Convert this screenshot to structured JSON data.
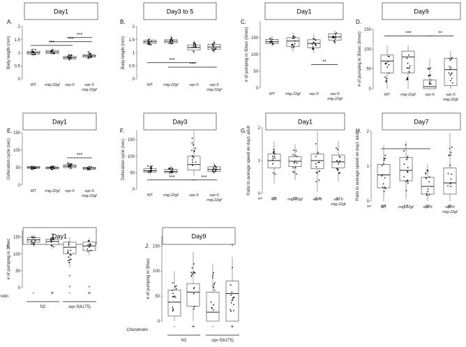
{
  "figure": {
    "description": "Multi-panel box plot figure"
  },
  "chart_data": [
    {
      "panel": "A.",
      "type": "box",
      "title": "Day1",
      "ylabel": "Body length (mm)",
      "yticks": [
        0,
        0.5,
        1,
        1.5,
        2
      ],
      "ylim": [
        0,
        2
      ],
      "categories": [
        "WT",
        "mig-22gf",
        "sqv-5",
        "sqv-5\nmig-22gf"
      ],
      "category_style": [
        "normal",
        "italic",
        "italic",
        "italic"
      ],
      "boxes": [
        {
          "q1": 0.95,
          "median": 1.0,
          "q3": 1.06,
          "min": 0.86,
          "max": 1.18
        },
        {
          "q1": 0.97,
          "median": 1.03,
          "q3": 1.09,
          "min": 0.9,
          "max": 1.2
        },
        {
          "q1": 0.76,
          "median": 0.81,
          "q3": 0.86,
          "min": 0.68,
          "max": 0.97
        },
        {
          "q1": 0.83,
          "median": 0.88,
          "q3": 0.92,
          "min": 0.74,
          "max": 1.1
        }
      ],
      "significance": [
        {
          "from": 0,
          "to": 2,
          "level": 1.28,
          "label": "***"
        },
        {
          "from": 1,
          "to": 3,
          "level": 1.42,
          "label": "***"
        },
        {
          "from": 2,
          "to": 3,
          "level": 1.58,
          "label": "***"
        }
      ]
    },
    {
      "panel": "B.",
      "type": "box",
      "title": "Day3 to 5",
      "ylabel": "Body length (mm)",
      "yticks": [
        0,
        0.5,
        1,
        1.5,
        2
      ],
      "ylim": [
        0,
        2
      ],
      "categories": [
        "WT",
        "mig-22gf",
        "sqv-5",
        "sqv-5\nmig-22gf"
      ],
      "category_style": [
        "normal",
        "italic",
        "italic",
        "italic"
      ],
      "boxes": [
        {
          "q1": 1.36,
          "median": 1.42,
          "q3": 1.48,
          "min": 1.25,
          "max": 1.6
        },
        {
          "q1": 1.38,
          "median": 1.44,
          "q3": 1.5,
          "min": 1.28,
          "max": 1.66
        },
        {
          "q1": 1.1,
          "median": 1.2,
          "q3": 1.3,
          "min": 0.95,
          "max": 1.48
        },
        {
          "q1": 1.13,
          "median": 1.22,
          "q3": 1.32,
          "min": 0.98,
          "max": 1.48
        }
      ],
      "significance": [
        {
          "from": 0,
          "to": 2,
          "level": 0.62,
          "label": "***"
        },
        {
          "from": 1,
          "to": 3,
          "level": 0.45,
          "label": "***"
        }
      ]
    },
    {
      "panel": "C.",
      "type": "box",
      "title": "Day1",
      "ylabel": "# of pumping in 30sec (times)",
      "yticks": [
        0,
        50,
        100,
        150
      ],
      "ylim": [
        0,
        200
      ],
      "categories": [
        "WT",
        "mig-22gf",
        "sqv-5",
        "sqv-5\nmig-22gf"
      ],
      "category_style": [
        "normal",
        "italic",
        "italic",
        "italic"
      ],
      "boxes": [
        {
          "q1": 132,
          "median": 138,
          "q3": 145,
          "min": 124,
          "max": 155
        },
        {
          "q1": 124,
          "median": 140,
          "q3": 150,
          "min": 108,
          "max": 165
        },
        {
          "q1": 120,
          "median": 133,
          "q3": 144,
          "min": 105,
          "max": 160
        },
        {
          "q1": 143,
          "median": 152,
          "q3": 162,
          "min": 130,
          "max": 172
        }
      ],
      "significance": [
        {
          "from": 2,
          "to": 3,
          "level": 70,
          "label": "**"
        }
      ]
    },
    {
      "panel": "D.",
      "type": "box",
      "title": "Day9",
      "ylabel": "# of pumping in 30sec (times)",
      "yticks": [
        0,
        50,
        100,
        150
      ],
      "ylim": [
        0,
        150
      ],
      "categories": [
        "WT",
        "mig-22gf",
        "sqv-5",
        "sqv-5\nmig-22gf"
      ],
      "category_style": [
        "normal",
        "italic",
        "italic",
        "italic"
      ],
      "boxes": [
        {
          "q1": 40,
          "median": 70,
          "q3": 85,
          "min": 0,
          "max": 110
        },
        {
          "q1": 40,
          "median": 80,
          "q3": 95,
          "min": 0,
          "max": 110
        },
        {
          "q1": 0,
          "median": 5,
          "q3": 22,
          "min": 0,
          "max": 75
        },
        {
          "q1": 8,
          "median": 48,
          "q3": 77,
          "min": 0,
          "max": 95
        }
      ],
      "significance": [
        {
          "from": 0,
          "to": 2,
          "level": 133,
          "label": "***"
        },
        {
          "from": 2,
          "to": 3,
          "level": 133,
          "label": "**"
        }
      ]
    },
    {
      "panel": "E.",
      "type": "box",
      "title": "Day1",
      "ylabel": "Defecation cycle (sec)",
      "yticks": [
        0,
        50,
        100,
        150
      ],
      "ylim": [
        0,
        150
      ],
      "categories": [
        "WT",
        "mig-22gf",
        "sqv-5",
        "sqv-5\nmig-22gf"
      ],
      "category_style": [
        "normal",
        "italic",
        "italic",
        "italic"
      ],
      "boxes": [
        {
          "q1": 48,
          "median": 50,
          "q3": 53,
          "min": 43,
          "max": 57
        },
        {
          "q1": 46,
          "median": 49,
          "q3": 52,
          "min": 42,
          "max": 56
        },
        {
          "q1": 50,
          "median": 54,
          "q3": 58,
          "min": 44,
          "max": 66
        },
        {
          "q1": 45,
          "median": 48,
          "q3": 51,
          "min": 41,
          "max": 56
        }
      ],
      "significance": [
        {
          "from": 2,
          "to": 3,
          "level": 78,
          "label": "***"
        }
      ]
    },
    {
      "panel": "F.",
      "type": "box",
      "title": "Day3",
      "ylabel": "Defecation cycle (sec)",
      "yticks": [
        0,
        50,
        100,
        150
      ],
      "ylim": [
        0,
        180
      ],
      "categories": [
        "WT",
        "mig-22gf",
        "sqv-5",
        "sqv-5\nmig-22gf"
      ],
      "category_style": [
        "normal",
        "italic",
        "italic",
        "italic"
      ],
      "boxes": [
        {
          "q1": 52,
          "median": 56,
          "q3": 62,
          "min": 45,
          "max": 75
        },
        {
          "q1": 50,
          "median": 54,
          "q3": 60,
          "min": 44,
          "max": 72
        },
        {
          "q1": 58,
          "median": 75,
          "q3": 100,
          "min": 40,
          "max": 178
        },
        {
          "q1": 54,
          "median": 60,
          "q3": 68,
          "min": 46,
          "max": 80
        }
      ],
      "significance": [
        {
          "from": 0,
          "to": 2,
          "level": 28,
          "label": "***"
        },
        {
          "from": 2,
          "to": 3,
          "level": 28,
          "label": "***"
        }
      ]
    },
    {
      "panel": "G.",
      "type": "box",
      "title": "Day1",
      "ylabel": "Ratio to average speed on day1 adult",
      "yticks": [
        0,
        1,
        2
      ],
      "ylim": [
        0,
        2
      ],
      "categories": [
        "WT",
        "mig-22gf",
        "sqv-5",
        "sqv-5\nmig-22gf"
      ],
      "category_style": [
        "normal",
        "italic",
        "italic",
        "italic"
      ],
      "n_label": "n=",
      "n_values": [
        "75",
        "80",
        "114",
        "67"
      ],
      "boxes": [
        {
          "q1": 0.78,
          "median": 1.0,
          "q3": 1.2,
          "min": 0.3,
          "max": 1.6
        },
        {
          "q1": 0.82,
          "median": 0.98,
          "q3": 1.12,
          "min": 0.4,
          "max": 1.5
        },
        {
          "q1": 0.75,
          "median": 1.0,
          "q3": 1.2,
          "min": 0.05,
          "max": 1.9
        },
        {
          "q1": 0.78,
          "median": 0.96,
          "q3": 1.17,
          "min": 0.35,
          "max": 1.6
        }
      ],
      "significance": []
    },
    {
      "panel": "H.",
      "type": "box",
      "title": "Day7",
      "ylabel": "Ratio to average speed on day1 adult",
      "yticks": [
        0,
        1,
        2
      ],
      "ylim": [
        0,
        2
      ],
      "categories": [
        "WT",
        "mig-22gf",
        "sqv-5",
        "sqv-5\nmig-22gf"
      ],
      "category_style": [
        "normal",
        "italic",
        "italic",
        "italic"
      ],
      "n_label": "n=",
      "n_values": [
        "67",
        "57",
        "58",
        "85"
      ],
      "boxes": [
        {
          "q1": 0.38,
          "median": 0.75,
          "q3": 1.05,
          "min": 0.0,
          "max": 1.6
        },
        {
          "q1": 0.58,
          "median": 0.88,
          "q3": 1.25,
          "min": 0.05,
          "max": 1.7
        },
        {
          "q1": 0.2,
          "median": 0.42,
          "q3": 0.68,
          "min": 0.0,
          "max": 1.05
        },
        {
          "q1": 0.2,
          "median": 0.52,
          "q3": 0.95,
          "min": 0.0,
          "max": 1.95
        }
      ],
      "significance": [
        {
          "from": 0,
          "to": 2,
          "level": 1.5,
          "label": "*"
        }
      ]
    },
    {
      "panel": "I.",
      "type": "box",
      "title": "Day1",
      "ylabel": "# of pumping in 30sec",
      "yticks": [
        0,
        50,
        100,
        150
      ],
      "ylim": [
        0,
        170
      ],
      "categories": [
        "-",
        "+",
        "-",
        "+"
      ],
      "category_style": [
        "normal",
        "normal",
        "normal",
        "normal"
      ],
      "row_label": "Chondroitin",
      "groups": [
        {
          "label": "N2",
          "from": 0,
          "to": 1
        },
        {
          "label": "sqv-5(k175)",
          "from": 2,
          "to": 3
        }
      ],
      "boxes": [
        {
          "q1": 135,
          "median": 142,
          "q3": 148,
          "min": 122,
          "max": 158
        },
        {
          "q1": 128,
          "median": 137,
          "q3": 144,
          "min": 115,
          "max": 155
        },
        {
          "q1": 100,
          "median": 120,
          "q3": 135,
          "min": 60,
          "max": 150
        },
        {
          "q1": 110,
          "median": 124,
          "q3": 135,
          "min": 95,
          "max": 148
        }
      ],
      "outliers": [
        [],
        [
          155
        ],
        [
          32,
          0
        ],
        [
          0
        ]
      ],
      "significance": []
    },
    {
      "panel": "J.",
      "type": "box",
      "title": "Day9",
      "ylabel": "# of pumping in 30sec",
      "yticks": [
        0,
        50,
        100,
        150
      ],
      "ylim": [
        0,
        170
      ],
      "categories": [
        "-",
        "+",
        "-",
        "+"
      ],
      "category_style": [
        "normal",
        "normal",
        "normal",
        "normal"
      ],
      "row_label": "Chondroitin",
      "groups": [
        {
          "label": "N2",
          "from": 0,
          "to": 1
        },
        {
          "label": "sqv-5(k175)",
          "from": 2,
          "to": 3
        }
      ],
      "boxes": [
        {
          "q1": 10,
          "median": 38,
          "q3": 62,
          "min": 0,
          "max": 100
        },
        {
          "q1": 30,
          "median": 58,
          "q3": 75,
          "min": 0,
          "max": 138
        },
        {
          "q1": 0,
          "median": 18,
          "q3": 58,
          "min": 0,
          "max": 115
        },
        {
          "q1": 0,
          "median": 55,
          "q3": 80,
          "min": 0,
          "max": 128
        }
      ],
      "outliers": [
        [],
        [],
        [],
        [
          150
        ]
      ],
      "significance": []
    }
  ]
}
